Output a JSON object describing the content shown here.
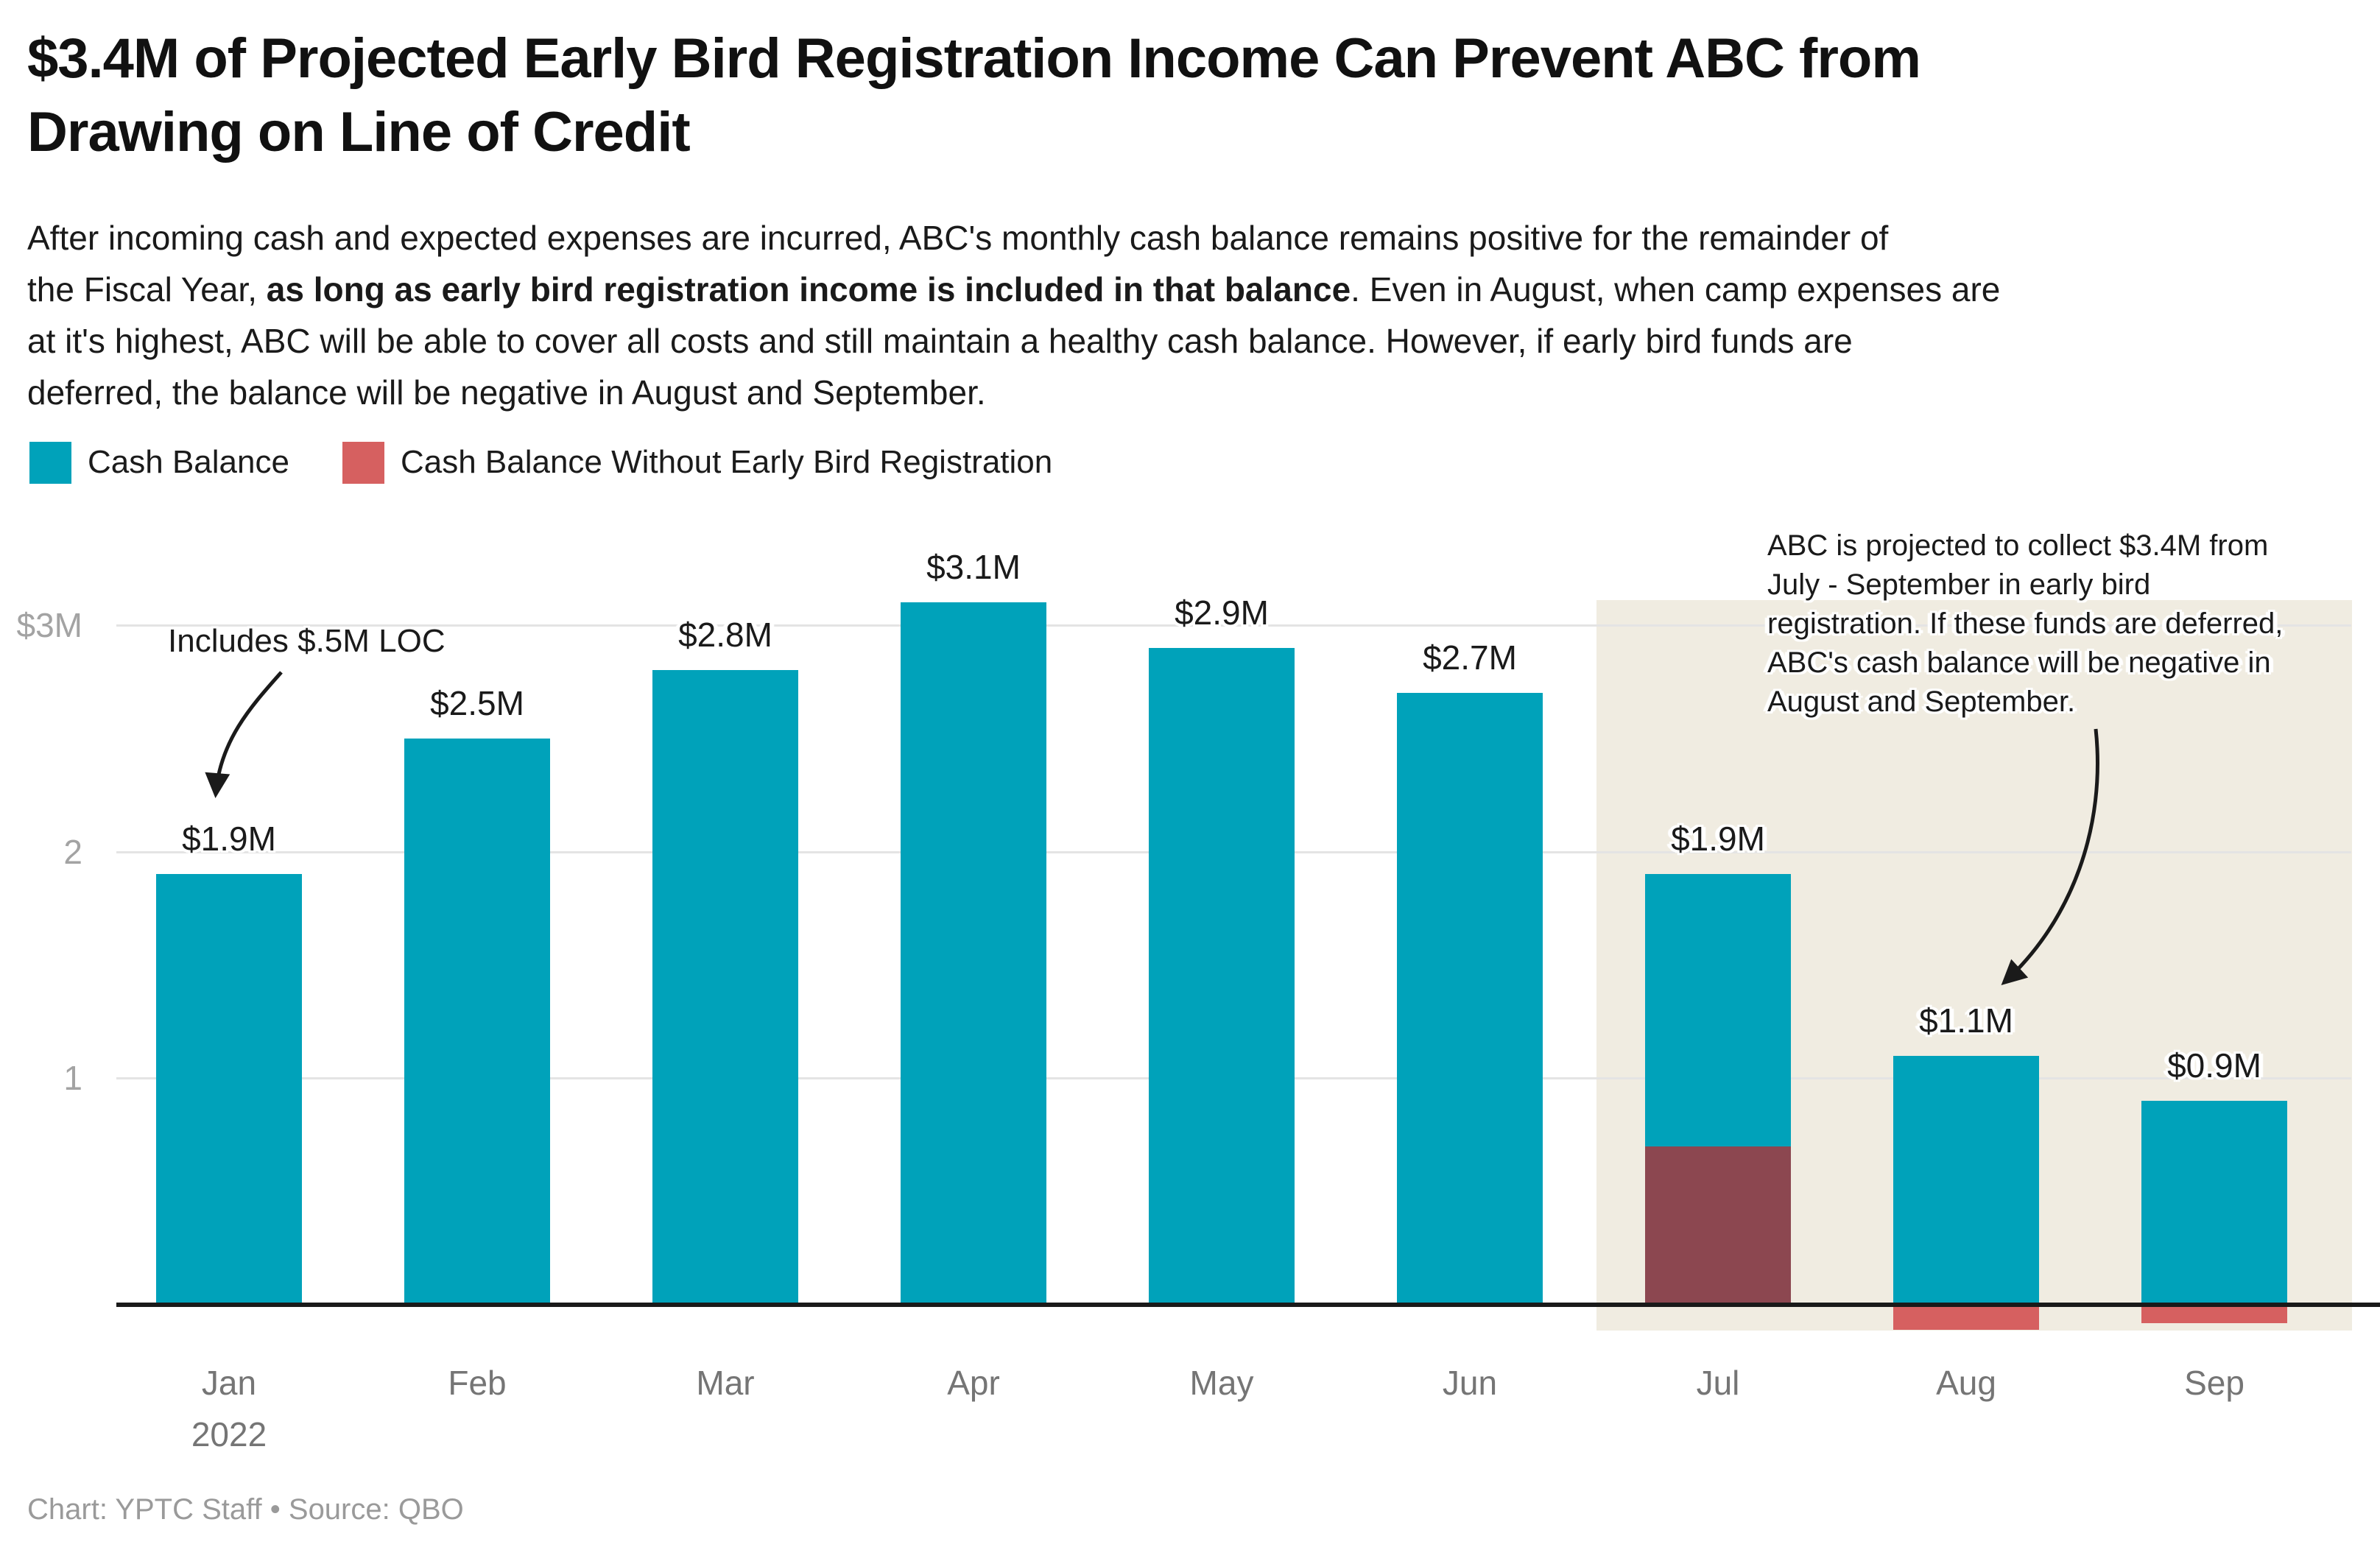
{
  "header": {
    "title": "$3.4M of Projected Early Bird Registration Income Can Prevent ABC from\nDrawing on Line of Credit",
    "description_pre": "After incoming cash and expected expenses are incurred, ABC's monthly cash balance remains positive for the remainder of\nthe Fiscal Year, ",
    "description_bold": "as long as early bird registration income is included in that balance",
    "description_post": ". Even in August, when camp expenses are\nat it's highest, ABC will be able to cover all costs and still maintain a healthy cash balance. However, if early bird funds are\ndeferred, the balance will be negative in August and September."
  },
  "legend": {
    "items": [
      {
        "label": "Cash Balance",
        "color": "#00a2ba"
      },
      {
        "label": "Cash Balance Without Early Bird Registration",
        "color": "#d66060"
      }
    ]
  },
  "chart_data": {
    "type": "bar",
    "title": "$3.4M of Projected Early Bird Registration Income Can Prevent ABC from Drawing on Line of Credit",
    "categories": [
      "Jan\n2022",
      "Feb",
      "Mar",
      "Apr",
      "May",
      "Jun",
      "Jul",
      "Aug",
      "Sep"
    ],
    "series": [
      {
        "name": "Cash Balance",
        "color": "#00a2ba",
        "values": [
          1.9,
          2.5,
          2.8,
          3.1,
          2.9,
          2.7,
          1.9,
          1.1,
          0.9
        ]
      },
      {
        "name": "Cash Balance Without Early Bird Registration",
        "color": "#d66060",
        "values": [
          null,
          null,
          null,
          null,
          null,
          null,
          0.7,
          -0.1,
          -0.07
        ]
      }
    ],
    "overlap_color": "#8c4750",
    "bar_labels": [
      "$1.9M",
      "$2.5M",
      "$2.8M",
      "$3.1M",
      "$2.9M",
      "$2.7M",
      "$1.9M",
      "$1.1M",
      "$0.9M"
    ],
    "y_ticks": [
      {
        "value": 1,
        "label": "1"
      },
      {
        "value": 2,
        "label": "2"
      },
      {
        "value": 3,
        "label": "$3M"
      }
    ],
    "ylim": [
      -0.25,
      3.35
    ],
    "grid": true,
    "legend_position": "top-left",
    "xlabel": "",
    "ylabel": "",
    "highlight_region": {
      "months": [
        "Jul",
        "Aug",
        "Sep"
      ],
      "color": "#f0ece1"
    },
    "annotations": [
      {
        "id": "loc-note",
        "text": "Includes $.5M LOC"
      },
      {
        "id": "deferral-note",
        "text": "ABC is projected to collect $3.4M from\nJuly - September in early bird\nregistration. If these funds are deferred,\nABC's cash balance will be negative in\nAugust and September."
      }
    ]
  },
  "footer": {
    "credit": "Chart: YPTC Staff • Source: QBO"
  }
}
